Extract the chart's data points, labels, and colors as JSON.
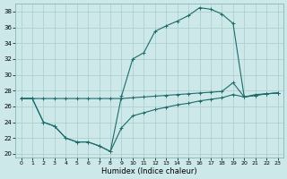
{
  "xlabel": "Humidex (Indice chaleur)",
  "background_color": "#cce8e8",
  "grid_color": "#aacccc",
  "line_color": "#1e6b6b",
  "xlim": [
    -0.5,
    23.5
  ],
  "ylim": [
    19.5,
    39.0
  ],
  "yticks": [
    20,
    22,
    24,
    26,
    28,
    30,
    32,
    34,
    36,
    38
  ],
  "xticks": [
    0,
    1,
    2,
    3,
    4,
    5,
    6,
    7,
    8,
    9,
    10,
    11,
    12,
    13,
    14,
    15,
    16,
    17,
    18,
    19,
    20,
    21,
    22,
    23
  ],
  "line1_x": [
    0,
    1,
    2,
    3,
    4,
    5,
    6,
    7,
    8,
    9,
    10,
    11,
    12,
    13,
    14,
    15,
    16,
    17,
    18,
    19,
    20,
    21,
    22,
    23
  ],
  "line1_y": [
    27.0,
    27.0,
    24.0,
    23.5,
    22.0,
    21.5,
    21.5,
    21.0,
    20.3,
    27.3,
    32.0,
    32.8,
    35.5,
    36.2,
    36.8,
    37.5,
    38.5,
    38.3,
    37.7,
    36.5,
    27.2,
    27.5,
    27.6,
    27.7
  ],
  "line2_x": [
    0,
    1,
    2,
    3,
    4,
    5,
    6,
    7,
    8,
    9,
    10,
    11,
    12,
    13,
    14,
    15,
    16,
    17,
    18,
    19,
    20,
    21,
    22,
    23
  ],
  "line2_y": [
    27.0,
    27.0,
    27.0,
    27.0,
    27.0,
    27.0,
    27.0,
    27.0,
    27.0,
    27.0,
    27.1,
    27.2,
    27.3,
    27.4,
    27.5,
    27.6,
    27.7,
    27.8,
    27.9,
    29.0,
    27.2,
    27.4,
    27.6,
    27.7
  ],
  "line3_x": [
    0,
    1,
    2,
    3,
    4,
    5,
    6,
    7,
    8,
    9,
    10,
    11,
    12,
    13,
    14,
    15,
    16,
    17,
    18,
    19,
    20,
    21,
    22,
    23
  ],
  "line3_y": [
    27.0,
    27.0,
    24.0,
    23.5,
    22.0,
    21.5,
    21.5,
    21.0,
    20.3,
    23.3,
    24.8,
    25.2,
    25.6,
    25.9,
    26.2,
    26.4,
    26.7,
    26.9,
    27.1,
    27.5,
    27.2,
    27.4,
    27.6,
    27.7
  ]
}
